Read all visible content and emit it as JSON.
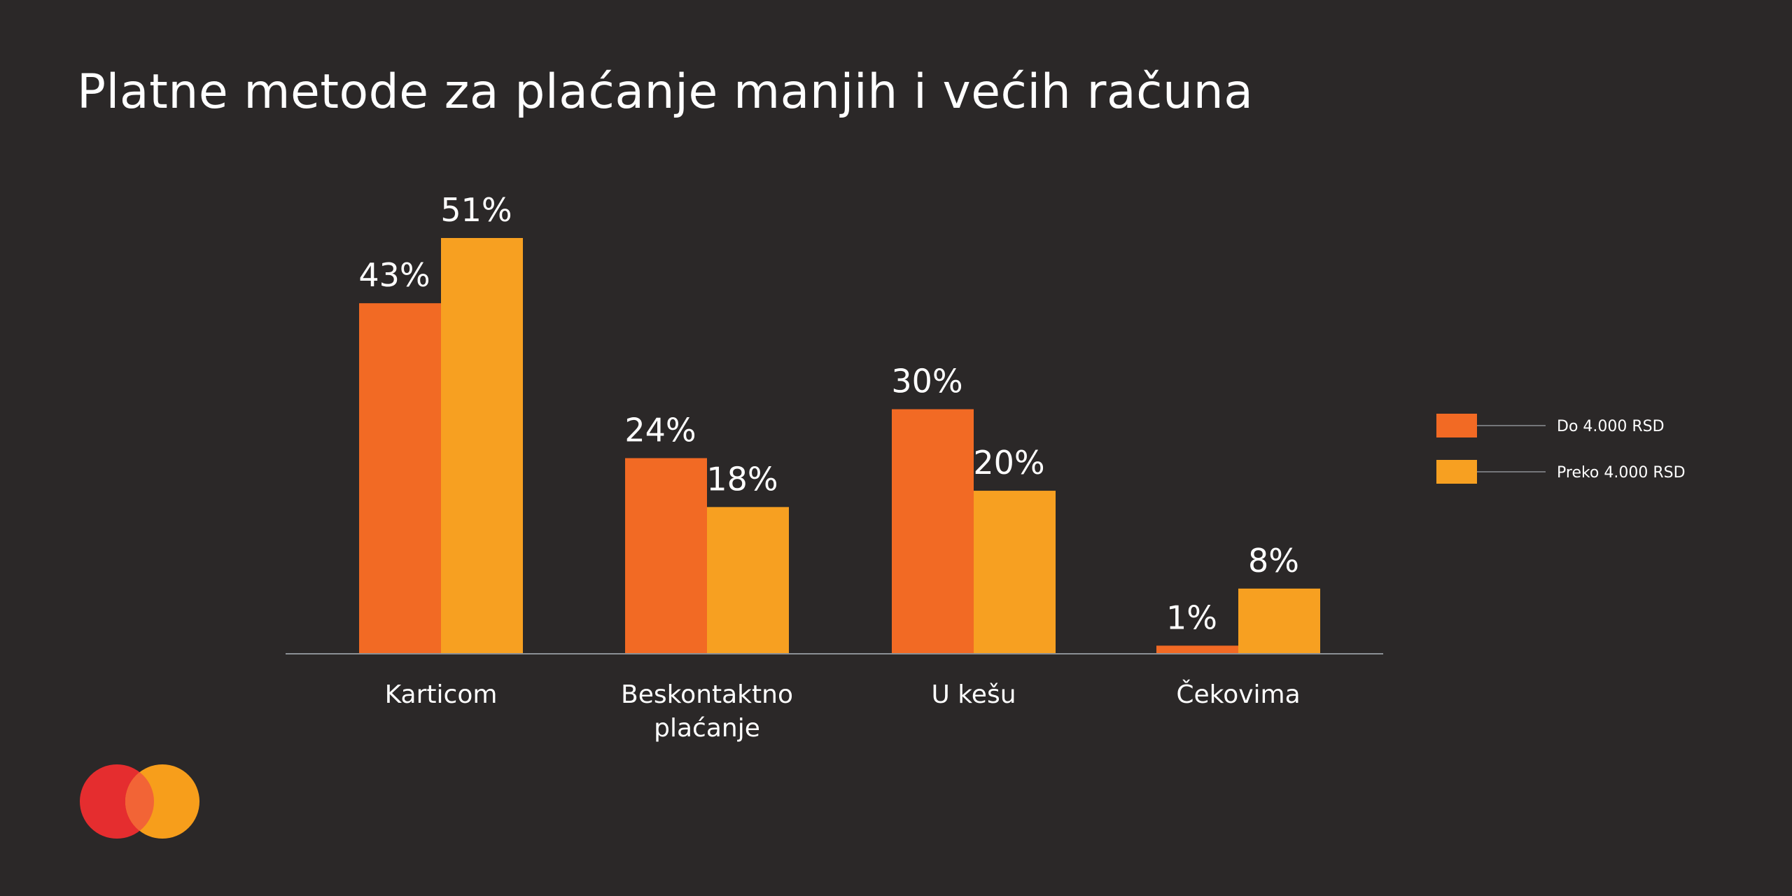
{
  "chart_data": {
    "type": "bar",
    "title": "Platne metode za plaćanje manjih i većih računa",
    "categories": [
      "Karticom",
      "Beskontaktno plaćanje",
      "U kešu",
      "Čekovima"
    ],
    "category_lines": [
      [
        "Karticom"
      ],
      [
        "Beskontaktno",
        "plaćanje"
      ],
      [
        "U kešu"
      ],
      [
        "Čekovima"
      ]
    ],
    "series": [
      {
        "name": "Do 4.000 RSD",
        "values": [
          43,
          24,
          30,
          1
        ],
        "labels": [
          "43%",
          "24%",
          "30%",
          "1%"
        ],
        "color": "#f26a24"
      },
      {
        "name": "Preko 4.000 RSD",
        "values": [
          51,
          18,
          20,
          8
        ],
        "labels": [
          "51%",
          "18%",
          "20%",
          "8%"
        ],
        "color": "#f7a021"
      }
    ],
    "unit": "%",
    "ylim": [
      0,
      51
    ],
    "grid": false,
    "legend": "right"
  },
  "colors": {
    "background": "#2b2828",
    "axis": "#8c9095",
    "logo_red": "#e52d2f",
    "logo_orange": "#f79e1b",
    "logo_overlap": "#f26436"
  },
  "logo": {
    "icon": "mastercard-logo-icon"
  }
}
